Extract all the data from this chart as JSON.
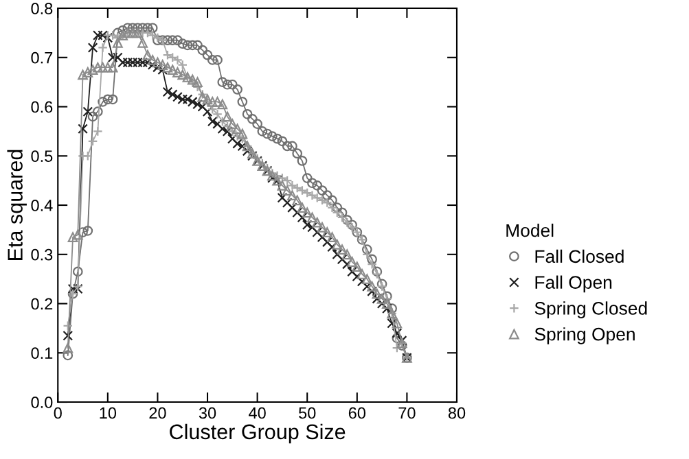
{
  "chart_data": {
    "type": "line",
    "xlabel": "Cluster Group Size",
    "ylabel": "Eta squared",
    "legend_title": "Model",
    "legend": "right",
    "grid": false,
    "x": [
      2,
      3,
      4,
      5,
      6,
      7,
      8,
      9,
      10,
      11,
      12,
      13,
      14,
      15,
      16,
      17,
      18,
      19,
      20,
      21,
      22,
      23,
      24,
      25,
      26,
      27,
      28,
      29,
      30,
      31,
      32,
      33,
      34,
      35,
      36,
      37,
      38,
      39,
      40,
      41,
      42,
      43,
      44,
      45,
      46,
      47,
      48,
      49,
      50,
      51,
      52,
      53,
      54,
      55,
      56,
      57,
      58,
      59,
      60,
      61,
      62,
      63,
      64,
      65,
      66,
      67,
      68,
      69,
      70
    ],
    "xlim": [
      0,
      80
    ],
    "xticks": [
      0,
      10,
      20,
      30,
      40,
      50,
      60,
      70,
      80
    ],
    "ylim": [
      0.0,
      0.8
    ],
    "yticks": [
      {
        "value": 0,
        "label": "0.0"
      },
      0.1,
      0.2,
      0.3,
      0.4,
      0.5,
      0.6,
      0.7,
      0.8
    ],
    "series": [
      {
        "name": "Fall Closed",
        "color": "#707070",
        "marker": "circle",
        "values": [
          0.095,
          0.22,
          0.265,
          0.345,
          0.348,
          0.58,
          0.59,
          0.61,
          0.615,
          0.615,
          0.75,
          0.755,
          0.76,
          0.76,
          0.76,
          0.76,
          0.76,
          0.76,
          0.735,
          0.735,
          0.735,
          0.735,
          0.735,
          0.728,
          0.725,
          0.725,
          0.725,
          0.715,
          0.705,
          0.695,
          0.695,
          0.65,
          0.645,
          0.645,
          0.635,
          0.61,
          0.585,
          0.575,
          0.565,
          0.55,
          0.545,
          0.54,
          0.535,
          0.53,
          0.52,
          0.52,
          0.505,
          0.49,
          0.455,
          0.445,
          0.44,
          0.43,
          0.42,
          0.41,
          0.395,
          0.385,
          0.37,
          0.36,
          0.345,
          0.33,
          0.31,
          0.29,
          0.265,
          0.24,
          0.215,
          0.19,
          0.13,
          0.115,
          0.09
        ]
      },
      {
        "name": "Fall Open",
        "color": "#202020",
        "marker": "cross",
        "values": [
          0.135,
          0.23,
          0.23,
          0.555,
          0.59,
          0.72,
          0.745,
          0.745,
          0.74,
          0.7,
          0.7,
          0.69,
          0.69,
          0.69,
          0.69,
          0.69,
          0.69,
          0.685,
          0.68,
          0.675,
          0.63,
          0.625,
          0.62,
          0.615,
          0.615,
          0.61,
          0.605,
          0.6,
          0.59,
          0.57,
          0.565,
          0.555,
          0.55,
          0.535,
          0.525,
          0.52,
          0.51,
          0.5,
          0.49,
          0.48,
          0.47,
          0.455,
          0.45,
          0.415,
          0.405,
          0.395,
          0.385,
          0.375,
          0.36,
          0.355,
          0.345,
          0.335,
          0.325,
          0.315,
          0.3,
          0.29,
          0.28,
          0.265,
          0.255,
          0.245,
          0.235,
          0.225,
          0.21,
          0.2,
          0.19,
          0.16,
          0.14,
          0.125,
          0.09
        ]
      },
      {
        "name": "Spring Closed",
        "color": "#a8a8a8",
        "marker": "plus",
        "values": [
          0.155,
          0.22,
          0.235,
          0.5,
          0.5,
          0.53,
          0.55,
          0.72,
          0.745,
          0.745,
          0.74,
          0.745,
          0.75,
          0.75,
          0.75,
          0.75,
          0.75,
          0.745,
          0.74,
          0.735,
          0.705,
          0.7,
          0.695,
          0.685,
          0.66,
          0.65,
          0.64,
          0.625,
          0.61,
          0.595,
          0.585,
          0.57,
          0.56,
          0.55,
          0.54,
          0.535,
          0.52,
          0.505,
          0.495,
          0.485,
          0.475,
          0.465,
          0.46,
          0.455,
          0.45,
          0.44,
          0.435,
          0.43,
          0.425,
          0.42,
          0.415,
          0.41,
          0.405,
          0.395,
          0.385,
          0.375,
          0.365,
          0.355,
          0.345,
          0.33,
          0.3,
          0.28,
          0.26,
          0.235,
          0.21,
          0.18,
          0.11,
          0.12,
          0.09
        ]
      },
      {
        "name": "Spring Open",
        "color": "#8c8c8c",
        "marker": "triangle",
        "values": [
          0.11,
          0.335,
          0.34,
          0.665,
          0.67,
          0.675,
          0.68,
          0.68,
          0.68,
          0.68,
          0.73,
          0.745,
          0.75,
          0.75,
          0.75,
          0.73,
          0.705,
          0.695,
          0.69,
          0.685,
          0.68,
          0.675,
          0.67,
          0.665,
          0.66,
          0.655,
          0.65,
          0.62,
          0.615,
          0.61,
          0.61,
          0.605,
          0.58,
          0.565,
          0.555,
          0.545,
          0.52,
          0.505,
          0.49,
          0.48,
          0.47,
          0.46,
          0.45,
          0.44,
          0.43,
          0.42,
          0.41,
          0.395,
          0.385,
          0.375,
          0.365,
          0.355,
          0.345,
          0.335,
          0.32,
          0.31,
          0.3,
          0.285,
          0.275,
          0.26,
          0.25,
          0.235,
          0.22,
          0.21,
          0.2,
          0.18,
          0.16,
          0.12,
          0.09
        ]
      }
    ]
  }
}
